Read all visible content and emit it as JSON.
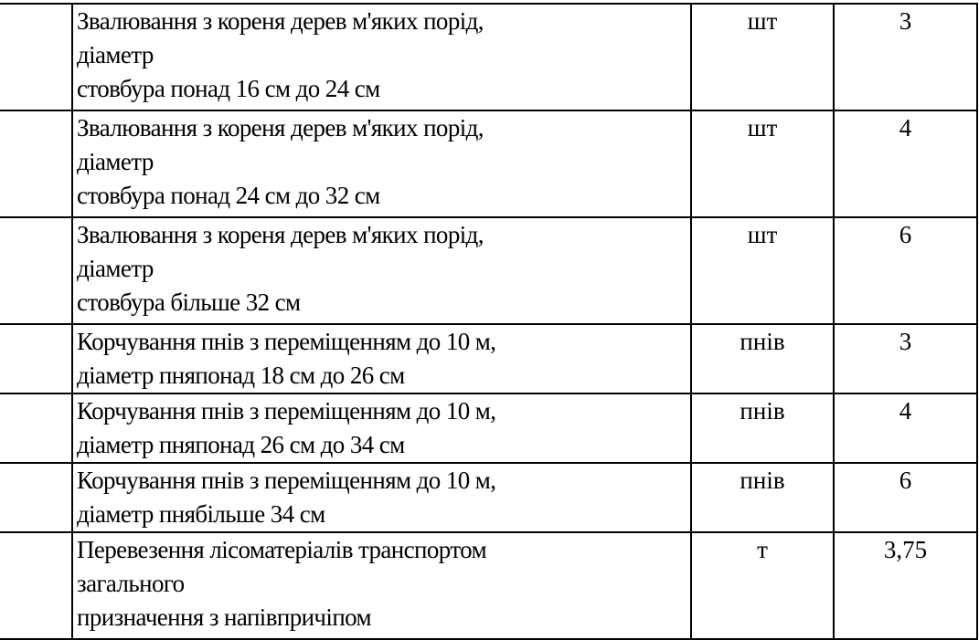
{
  "rows": [
    {
      "lines": [
        "Звалювання з кореня дерев м'яких порід,",
        "діаметр",
        "стовбура понад 16 см до 24 см"
      ],
      "unit": "шт",
      "qty": "3"
    },
    {
      "lines": [
        "Звалювання з кореня дерев м'яких порід,",
        "діаметр",
        "стовбура понад 24 см до 32 см"
      ],
      "unit": "шт",
      "qty": "4"
    },
    {
      "lines": [
        "Звалювання з кореня дерев м'яких порід,",
        "діаметр",
        "стовбура більше 32 см"
      ],
      "unit": "шт",
      "qty": "6"
    },
    {
      "lines": [
        "Корчування пнів з переміщенням до 10 м,",
        "діаметр пняпонад 18 см до 26 см"
      ],
      "unit": "пнів",
      "qty": "3"
    },
    {
      "lines": [
        "Корчування пнів з переміщенням до 10 м,",
        "діаметр пняпонад 26 см до 34 см"
      ],
      "unit": "пнів",
      "qty": "4"
    },
    {
      "lines": [
        "Корчування пнів з переміщенням до 10 м,",
        "діаметр пнябільше 34 см"
      ],
      "unit": "пнів",
      "qty": "6"
    },
    {
      "lines": [
        "Перевезення лісоматеріалів транспортом",
        "загального",
        "призначення з напівпричіпом"
      ],
      "unit": "т",
      "qty": "3,75"
    }
  ]
}
